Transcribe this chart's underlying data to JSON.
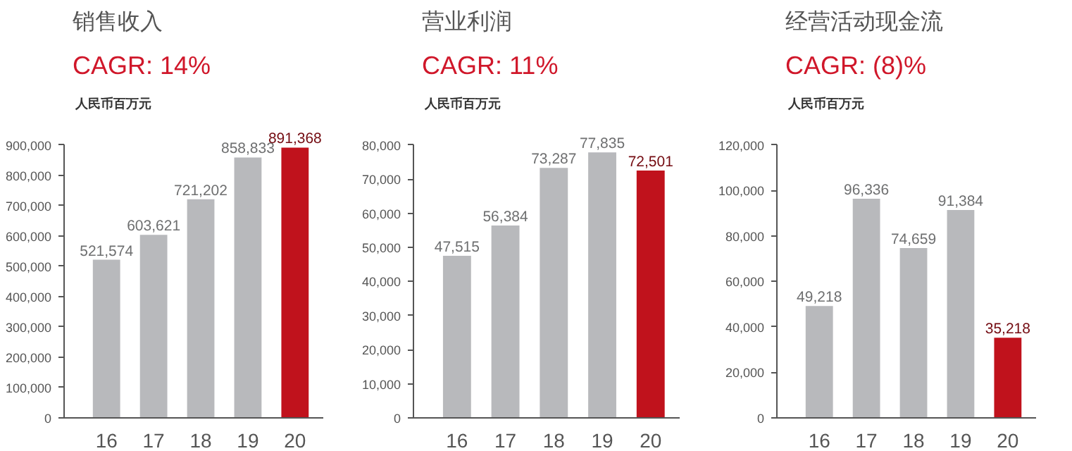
{
  "chart_data": [
    {
      "type": "bar",
      "title": "销售收入",
      "subtitle": "CAGR: 14%",
      "ylabel": "人民币百万元",
      "categories": [
        "16",
        "17",
        "18",
        "19",
        "20"
      ],
      "values": [
        521574,
        603621,
        721202,
        858833,
        891368
      ],
      "colors": [
        "#b8b9bc",
        "#b8b9bc",
        "#b8b9bc",
        "#b8b9bc",
        "#c0121c"
      ],
      "ylim": [
        0,
        900000
      ],
      "yticks": [
        {
          "value": 0,
          "label": "0"
        },
        {
          "value": 100000,
          "label": "100,000"
        },
        {
          "value": 200000,
          "label": "200,000"
        },
        {
          "value": 300000,
          "label": "300,000"
        },
        {
          "value": 400000,
          "label": "400,000"
        },
        {
          "value": 500000,
          "label": "500,000"
        },
        {
          "value": 600000,
          "label": "600,000"
        },
        {
          "value": 700000,
          "label": "700,000"
        },
        {
          "value": 800000,
          "label": "800,000"
        },
        {
          "value": 900000,
          "label": "900,000"
        }
      ],
      "value_labels": [
        "521,574",
        "603,621",
        "721,202",
        "858,833",
        "891,368"
      ],
      "grid": false
    },
    {
      "type": "bar",
      "title": "营业利润",
      "subtitle": "CAGR: 11%",
      "ylabel": "人民币百万元",
      "categories": [
        "16",
        "17",
        "18",
        "19",
        "20"
      ],
      "values": [
        47515,
        56384,
        73287,
        77835,
        72501
      ],
      "colors": [
        "#b8b9bc",
        "#b8b9bc",
        "#b8b9bc",
        "#b8b9bc",
        "#c0121c"
      ],
      "ylim": [
        0,
        80000
      ],
      "yticks": [
        {
          "value": 0,
          "label": "0"
        },
        {
          "value": 10000,
          "label": "10,000"
        },
        {
          "value": 20000,
          "label": "20,000"
        },
        {
          "value": 30000,
          "label": "30,000"
        },
        {
          "value": 40000,
          "label": "40,000"
        },
        {
          "value": 50000,
          "label": "50,000"
        },
        {
          "value": 60000,
          "label": "60,000"
        },
        {
          "value": 70000,
          "label": "70,000"
        },
        {
          "value": 80000,
          "label": "80,000"
        }
      ],
      "value_labels": [
        "47,515",
        "56,384",
        "73,287",
        "77,835",
        "72,501"
      ],
      "grid": false
    },
    {
      "type": "bar",
      "title": "经营活动现金流",
      "subtitle": "CAGR: (8)%",
      "ylabel": "人民币百万元",
      "categories": [
        "16",
        "17",
        "18",
        "19",
        "20"
      ],
      "values": [
        49218,
        96336,
        74659,
        91384,
        35218
      ],
      "colors": [
        "#b8b9bc",
        "#b8b9bc",
        "#b8b9bc",
        "#b8b9bc",
        "#c0121c"
      ],
      "ylim": [
        0,
        120000
      ],
      "yticks": [
        {
          "value": 0,
          "label": "0"
        },
        {
          "value": 20000,
          "label": "20,000"
        },
        {
          "value": 40000,
          "label": "40,000"
        },
        {
          "value": 60000,
          "label": "60,000"
        },
        {
          "value": 80000,
          "label": "80,000"
        },
        {
          "value": 100000,
          "label": "100,000"
        },
        {
          "value": 120000,
          "label": "120,000"
        }
      ],
      "value_labels": [
        "49,218",
        "96,336",
        "74,659",
        "91,384",
        "35,218"
      ],
      "grid": false
    }
  ]
}
